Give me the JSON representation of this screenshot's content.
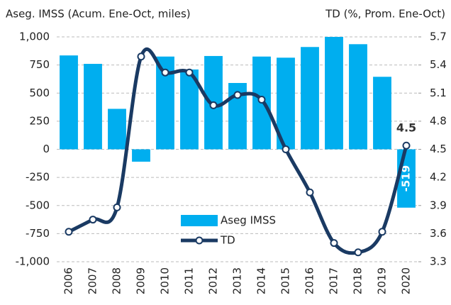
{
  "chart_data": {
    "type": "bar_line",
    "y_label": "Aseg. IMSS (Acum. Ene-Oct, miles)",
    "y2_label": "TD (%, Prom. Ene-Oct)",
    "categories": [
      "2006",
      "2007",
      "2008",
      "2009",
      "2010",
      "2011",
      "2012",
      "2013",
      "2014",
      "2015",
      "2016",
      "2017",
      "2018",
      "2019",
      "2020"
    ],
    "series": [
      {
        "name": "Aseg IMSS",
        "color": "#00aeef",
        "type": "bar",
        "values": [
          835,
          760,
          360,
          -110,
          825,
          710,
          830,
          590,
          825,
          815,
          910,
          1000,
          935,
          645,
          -519
        ],
        "value_labels": [
          null,
          null,
          null,
          null,
          null,
          null,
          null,
          null,
          null,
          null,
          null,
          null,
          null,
          null,
          "-519"
        ]
      },
      {
        "name": "TD",
        "color": "#1a3a63",
        "type": "line",
        "axis": "y2",
        "values": [
          3.62,
          3.75,
          3.88,
          5.49,
          5.32,
          5.32,
          4.97,
          5.08,
          5.03,
          4.5,
          4.04,
          3.5,
          3.4,
          3.62,
          4.54
        ],
        "value_labels": [
          null,
          null,
          null,
          null,
          null,
          null,
          null,
          null,
          null,
          null,
          null,
          null,
          null,
          null,
          "4.5"
        ]
      }
    ],
    "ylim": [
      -1000,
      1000
    ],
    "yticks": [
      {
        "value": -1000,
        "label": "-1,000"
      },
      -750,
      -500,
      -250,
      0,
      250,
      500,
      750,
      {
        "value": 1000,
        "label": "1,000"
      }
    ],
    "y2lim": [
      3.3,
      5.7
    ],
    "y2ticks": [
      3.3,
      3.6,
      3.9,
      4.2,
      4.5,
      4.8,
      5.1,
      5.4,
      5.7
    ],
    "grid": true
  }
}
